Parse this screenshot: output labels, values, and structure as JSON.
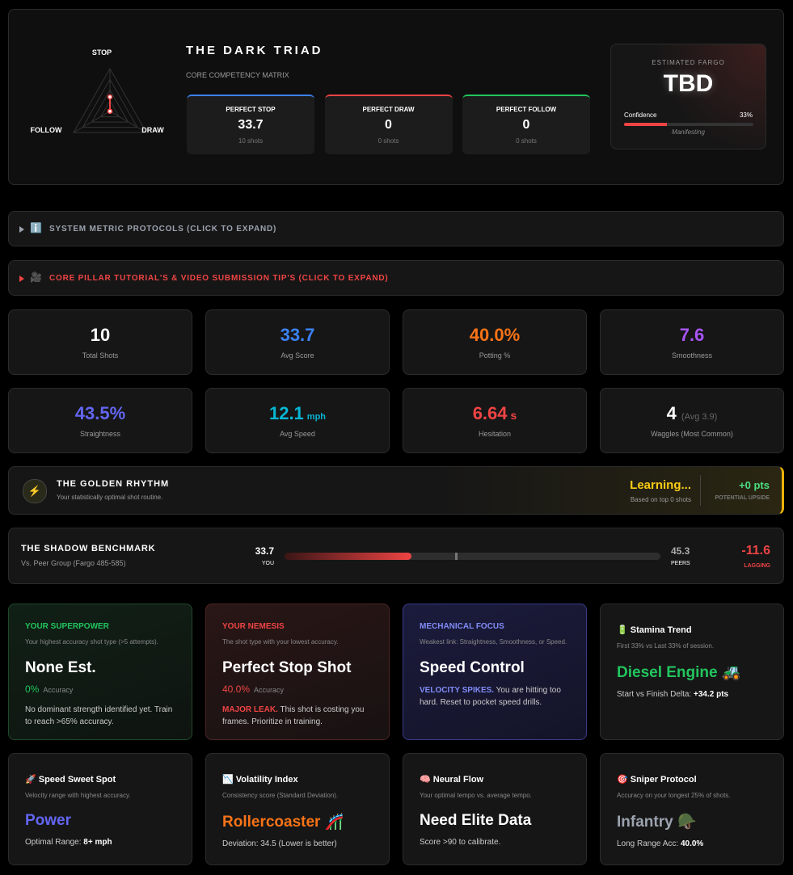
{
  "triad": {
    "title": "THE DARK TRIAD",
    "subtitle": "CORE COMPETENCY MATRIX",
    "axes": {
      "stop": "STOP",
      "follow": "FOLLOW",
      "draw": "DRAW"
    },
    "range": [
      0,
      100
    ],
    "cards": [
      {
        "label": "PERFECT STOP",
        "value": 33.7,
        "shots": "10 shots",
        "color": "#3b82f6"
      },
      {
        "label": "PERFECT DRAW",
        "value": 0,
        "shots": "0 shots",
        "color": "#ef4444"
      },
      {
        "label": "PERFECT FOLLOW",
        "value": 0,
        "shots": "0 shots",
        "color": "#22c55e"
      }
    ]
  },
  "fargo": {
    "label": "ESTIMATED FARGO",
    "value": "TBD",
    "confidence_label": "Confidence",
    "confidence": {
      "value": 33,
      "label": "33%"
    },
    "status": "Manifesting"
  },
  "protocols": [
    {
      "icon": "ℹ️",
      "text": "SYSTEM METRIC PROTOCOLS (CLICK TO EXPAND)",
      "color": "#9ca3af"
    },
    {
      "icon": "🎥",
      "text": "CORE PILLAR TUTORIAL'S & VIDEO SUBMISSION TIP'S (CLICK TO EXPAND)",
      "color": "#ef4444"
    }
  ],
  "stats": [
    {
      "value": "10",
      "label": "Total Shots",
      "color": "#ffffff"
    },
    {
      "value": "33.7",
      "label": "Avg Score",
      "color": "#3b82f6"
    },
    {
      "value": "40.0%",
      "label": "Potting %",
      "color": "#f97316"
    },
    {
      "value": "7.6",
      "label": "Smoothness",
      "color": "#a855f7"
    },
    {
      "value": "43.5%",
      "label": "Straightness",
      "color": "#6366f1"
    },
    {
      "value": "12.1",
      "unit": "mph",
      "label": "Avg Speed",
      "color": "#06b6d4"
    },
    {
      "value": "6.64",
      "unit": "s",
      "label": "Hesitation",
      "color": "#ef4444"
    },
    {
      "value": "4",
      "note": "(Avg 3.9)",
      "label": "Waggles (Most Common)",
      "color": "#ffffff"
    }
  ],
  "golden_rhythm": {
    "icon": "⚡",
    "title": "THE GOLDEN RHYTHM",
    "subtitle": "Your statistically optimal shot routine.",
    "status": "Learning...",
    "basis": "Based on top 0 shots",
    "upside": "+0 pts",
    "upside_label": "POTENTIAL UPSIDE"
  },
  "shadow": {
    "title": "THE SHADOW BENCHMARK",
    "subtitle": "Vs. Peer Group (Fargo 485-585)",
    "you": 33.7,
    "you_label": "YOU",
    "peers": 45.3,
    "peers_label": "PEERS",
    "range": [
      0,
      100
    ],
    "delta": "-11.6",
    "delta_label": "LAGGING"
  },
  "insights": [
    {
      "kicker": "YOUR SUPERPOWER",
      "kicker_color": "#22c55e",
      "desc": "Your highest accuracy shot type (>5 attempts).",
      "headline": "None Est.",
      "headline_color": "#ffffff",
      "metric": "0%",
      "metric_color": "#22c55e",
      "metric_label": "Accuracy",
      "body": "No dominant strength identified yet. Train to reach >65% accuracy."
    },
    {
      "kicker": "YOUR NEMESIS",
      "kicker_color": "#ef4444",
      "desc": "The shot type with your lowest accuracy.",
      "headline": "Perfect Stop Shot",
      "headline_color": "#ffffff",
      "metric": "40.0%",
      "metric_color": "#ef4444",
      "metric_label": "Accuracy",
      "lead": "MAJOR LEAK.",
      "lead_color": "#ef4444",
      "body": " This shot is costing you frames. Prioritize in training."
    },
    {
      "kicker": "MECHANICAL FOCUS",
      "kicker_color": "#818cf8",
      "desc": "Weakest link: Straightness, Smoothness, or Speed.",
      "headline": "Speed Control",
      "headline_color": "#ffffff",
      "lead": "VELOCITY SPIKES.",
      "lead_color": "#818cf8",
      "body": " You are hitting too hard. Reset to pocket speed drills."
    },
    {
      "title": "🔋 Stamina Trend",
      "desc": "First 33% vs Last 33% of session.",
      "headline": "Diesel Engine 🚜",
      "headline_color": "#22c55e",
      "body": "Start vs Finish Delta: ",
      "strong": "+34.2 pts"
    },
    {
      "title": "🚀 Speed Sweet Spot",
      "desc": "Velocity range with highest accuracy.",
      "headline": "Power",
      "headline_color": "#6366f1",
      "body": "Optimal Range: ",
      "strong": "8+ mph"
    },
    {
      "title": "📉 Volatility Index",
      "desc": "Consistency score (Standard Deviation).",
      "headline": "Rollercoaster 🎢",
      "headline_color": "#f97316",
      "body": "Deviation: 34.5 (Lower is better)"
    },
    {
      "title": "🧠 Neural Flow",
      "desc": "Your optimal tempo vs. average tempo.",
      "headline": "Need Elite Data",
      "headline_color": "#ffffff",
      "body": "Score >90 to calibrate."
    },
    {
      "title": "🎯 Sniper Protocol",
      "desc": "Accuracy on your longest 25% of shots.",
      "headline": "Infantry 🪖",
      "headline_color": "#9ca3af",
      "body": "Long Range Acc: ",
      "strong": "40.0%"
    }
  ]
}
